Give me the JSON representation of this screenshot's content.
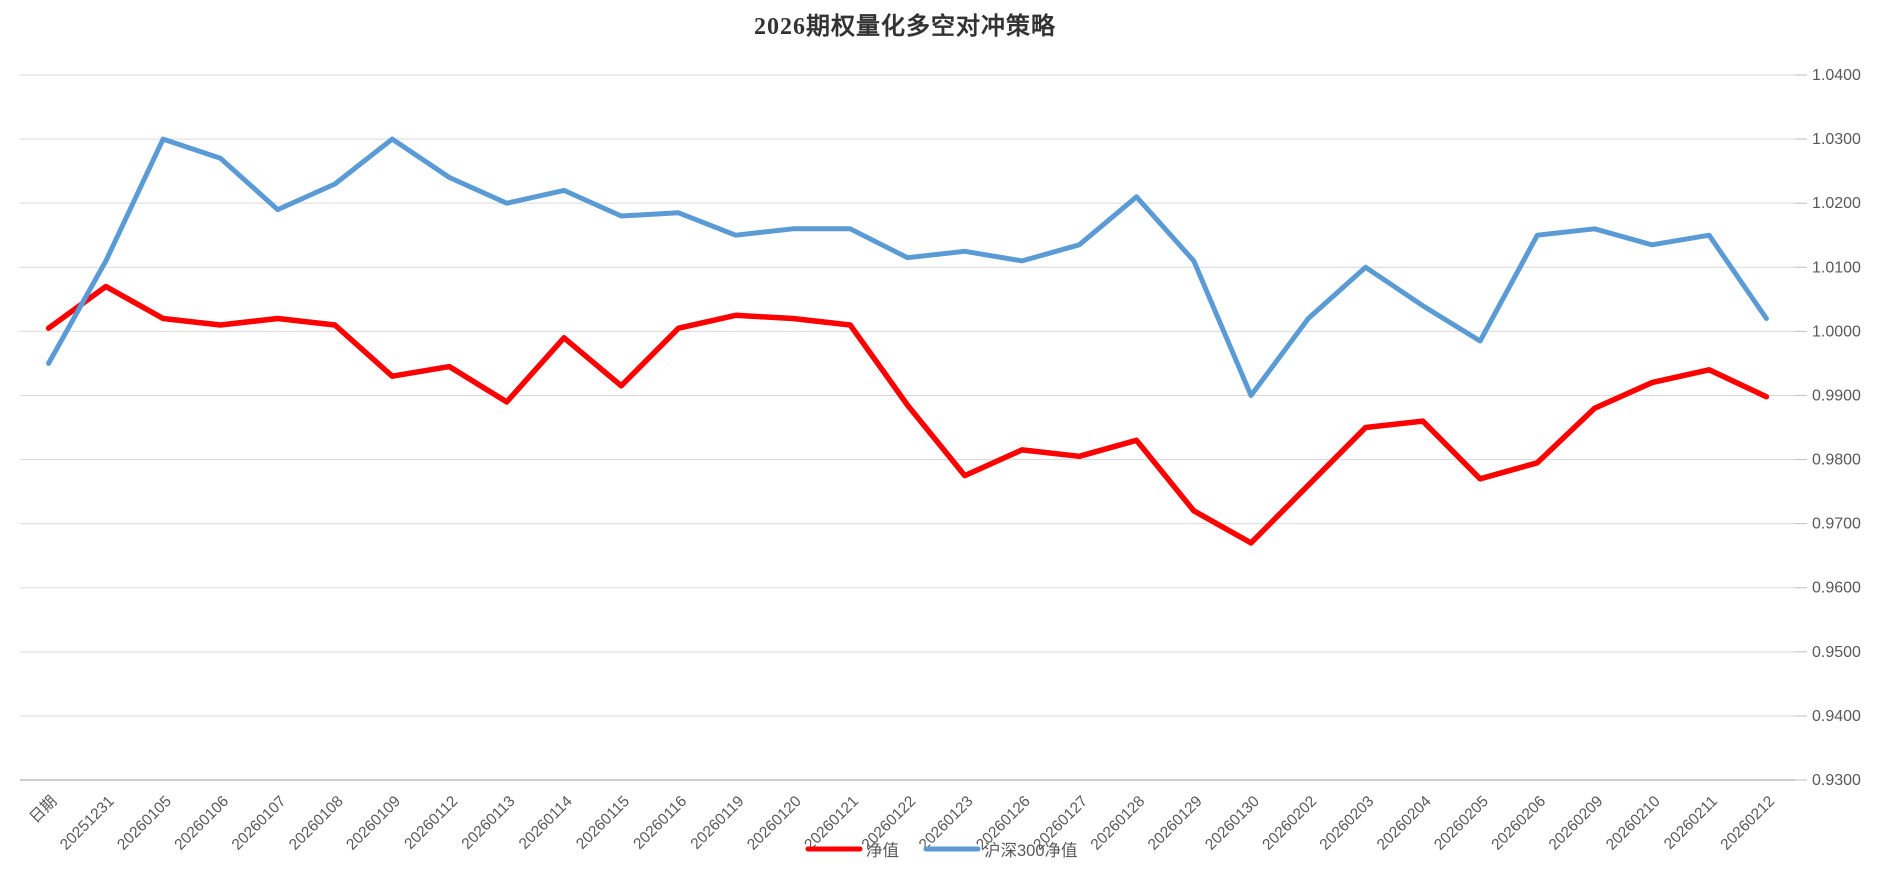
{
  "title": "2026期权量化多空对冲策略",
  "colors": {
    "grid": "#d9d9d9",
    "axis": "#bfbfbf",
    "tick_label": "#595959",
    "title_text": "#333333",
    "series_red": "#ff0000",
    "series_blue": "#5b9bd5"
  },
  "chart_data": {
    "type": "line",
    "title": "2026期权量化多空对冲策略",
    "categories": [
      "日期",
      "20251231",
      "20260105",
      "20260106",
      "20260107",
      "20260108",
      "20260109",
      "20260112",
      "20260113",
      "20260114",
      "20260115",
      "20260116",
      "20260119",
      "20260120",
      "20260121",
      "20260122",
      "20260123",
      "20260126",
      "20260127",
      "20260128",
      "20260129",
      "20260130",
      "20260202",
      "20260203",
      "20260204",
      "20260205",
      "20260206",
      "20260209",
      "20260210",
      "20260211",
      "20260212"
    ],
    "series": [
      {
        "name": "净值",
        "color": "#ff0000",
        "values": [
          1.0005,
          1.007,
          1.002,
          1.001,
          1.002,
          1.001,
          0.993,
          0.9945,
          0.989,
          0.999,
          0.9915,
          1.0005,
          1.0025,
          1.002,
          1.001,
          0.9885,
          0.9775,
          0.9815,
          0.9805,
          0.983,
          0.972,
          0.967,
          0.976,
          0.985,
          0.986,
          0.977,
          0.9795,
          0.988,
          0.992,
          0.994,
          0.9898
        ]
      },
      {
        "name": "沪深300净值",
        "color": "#5b9bd5",
        "values": [
          0.995,
          1.011,
          1.03,
          1.027,
          1.019,
          1.023,
          1.03,
          1.024,
          1.02,
          1.022,
          1.018,
          1.0185,
          1.015,
          1.016,
          1.016,
          1.0115,
          1.0125,
          1.011,
          1.0135,
          1.021,
          1.011,
          0.99,
          1.002,
          1.01,
          1.004,
          0.9985,
          1.015,
          1.016,
          1.0135,
          1.015,
          1.002
        ]
      }
    ],
    "y_axis": {
      "side": "right",
      "min": 0.93,
      "max": 1.04,
      "step": 0.01,
      "labels": [
        "1.0400",
        "1.0300",
        "1.0200",
        "1.0100",
        "1.0000",
        "0.9900",
        "0.9800",
        "0.9700",
        "0.9600",
        "0.9500",
        "0.9400",
        "0.9300"
      ]
    },
    "x_axis": {
      "label_rotation_deg": 45
    },
    "grid": true,
    "legend_position": "bottom-center",
    "legend": [
      "净值",
      "沪深300净值"
    ]
  }
}
